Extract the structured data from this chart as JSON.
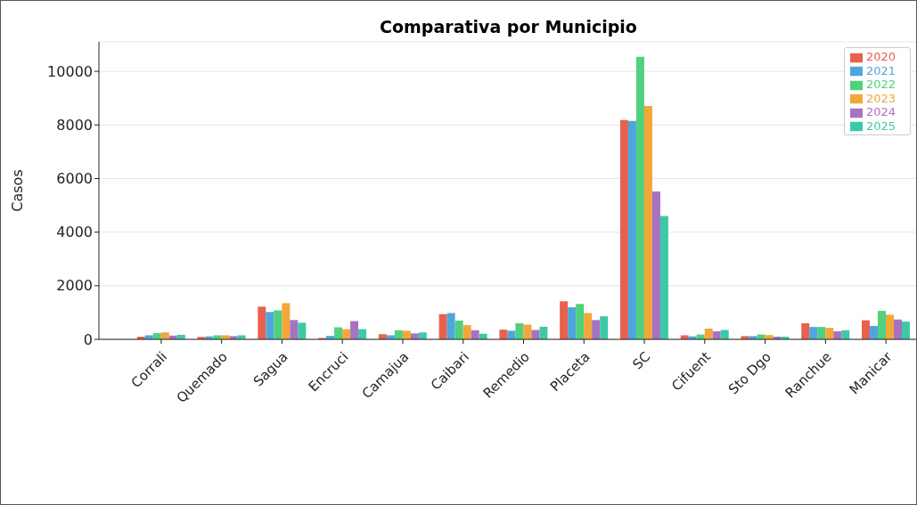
{
  "chart_data": {
    "type": "bar",
    "title": "Comparativa por Municipio",
    "ylabel": "Casos",
    "categories": [
      "Corrali",
      "Quemado",
      "Sagua",
      "Encruci",
      "Camajua",
      "Caibari",
      "Remedio",
      "Placeta",
      "SC",
      "Cifuent",
      "Sto Dgo",
      "Ranchue",
      "Manicar"
    ],
    "series": [
      {
        "name": "2020",
        "color": "#e8604e",
        "values": [
          100,
          90,
          1220,
          50,
          190,
          940,
          360,
          1420,
          8180,
          150,
          120,
          600,
          710
        ]
      },
      {
        "name": "2021",
        "color": "#4ea6dc",
        "values": [
          150,
          110,
          1020,
          130,
          150,
          980,
          320,
          1200,
          8150,
          110,
          120,
          460,
          500
        ]
      },
      {
        "name": "2022",
        "color": "#4fd17f",
        "values": [
          230,
          150,
          1080,
          450,
          340,
          700,
          600,
          1320,
          10540,
          180,
          180,
          460,
          1060
        ]
      },
      {
        "name": "2023",
        "color": "#f3a738",
        "values": [
          260,
          150,
          1350,
          380,
          320,
          530,
          550,
          980,
          8710,
          400,
          160,
          430,
          920
        ]
      },
      {
        "name": "2024",
        "color": "#a772c0",
        "values": [
          140,
          120,
          720,
          680,
          220,
          340,
          350,
          720,
          5520,
          300,
          100,
          300,
          740
        ]
      },
      {
        "name": "2025",
        "color": "#3dc9a9",
        "values": [
          170,
          150,
          620,
          380,
          260,
          210,
          470,
          860,
          4600,
          350,
          100,
          340,
          660
        ]
      }
    ],
    "ylim": [
      0,
      11100
    ],
    "yticks": [
      0,
      2000,
      4000,
      6000,
      8000,
      10000
    ],
    "grid": "y",
    "legend": "top right"
  }
}
